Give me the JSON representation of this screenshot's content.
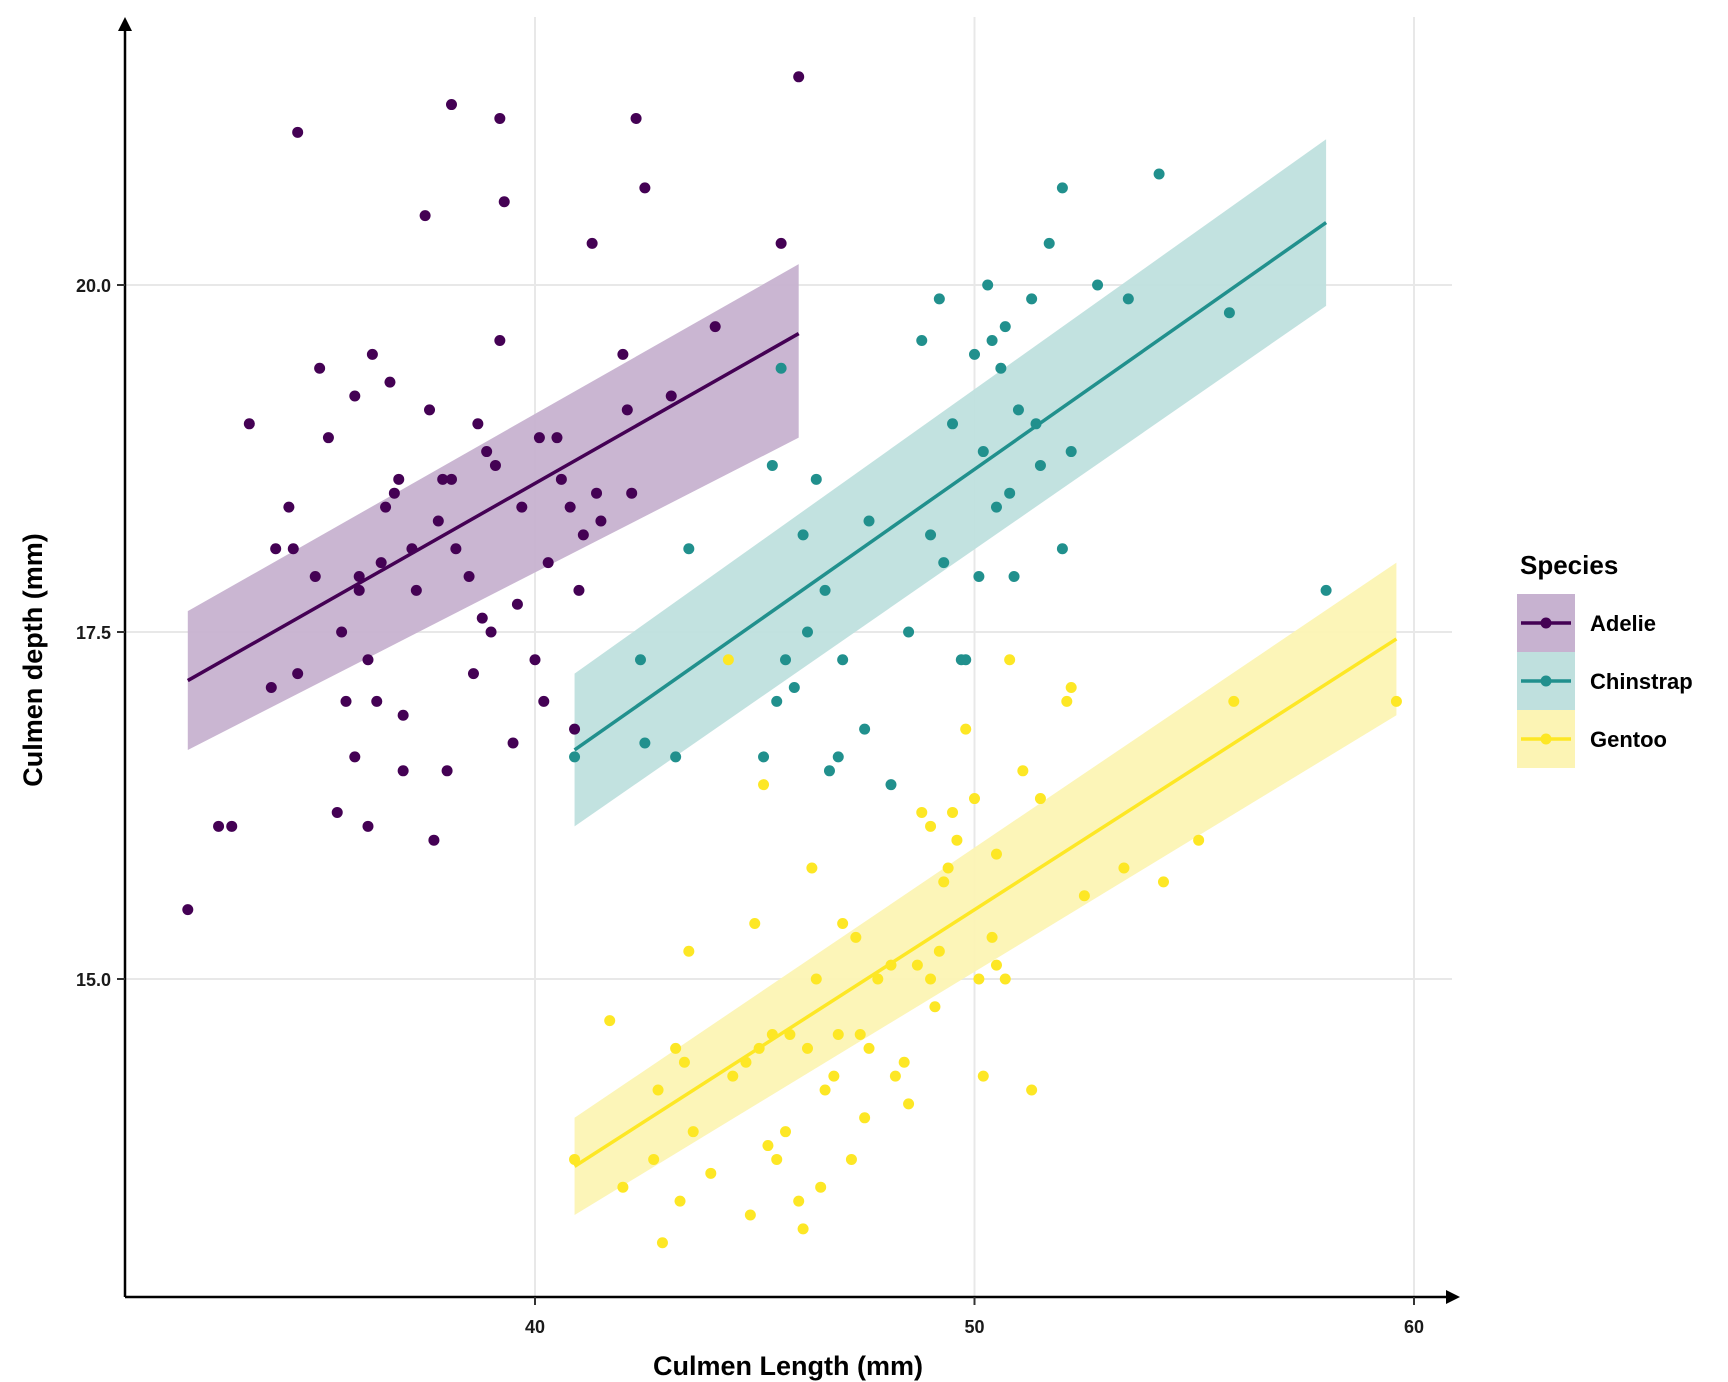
{
  "chart_data": {
    "type": "scatter",
    "title": "",
    "xlabel": "Culmen Length (mm)",
    "ylabel": "Culmen depth (mm)",
    "xlim": [
      31.5,
      61
    ],
    "ylim": [
      12.7,
      21.9
    ],
    "x_ticks": [
      40,
      50,
      60
    ],
    "y_ticks": [
      15.0,
      17.5,
      20.0
    ],
    "x_tick_labels": [
      "40",
      "50",
      "60"
    ],
    "y_tick_labels": [
      "15.0",
      "17.5",
      "20.0"
    ],
    "grid": true,
    "legend": {
      "title": "Species",
      "position": "right"
    },
    "series": [
      {
        "name": "Adelie",
        "color": "#440154",
        "fill": "#c7b2d0",
        "fit": {
          "x": [
            32.1,
            46.0
          ],
          "y": [
            17.15,
            19.65
          ],
          "band_lo": [
            16.65,
            18.9
          ],
          "band_hi": [
            17.65,
            20.15
          ]
        },
        "points": [
          [
            32.1,
            15.5
          ],
          [
            33.1,
            16.1
          ],
          [
            33.5,
            19.0
          ],
          [
            34.0,
            17.1
          ],
          [
            34.1,
            18.1
          ],
          [
            34.4,
            18.4
          ],
          [
            34.5,
            18.1
          ],
          [
            34.6,
            21.1
          ],
          [
            34.6,
            17.2
          ],
          [
            35.0,
            17.9
          ],
          [
            35.1,
            19.4
          ],
          [
            35.3,
            18.9
          ],
          [
            35.5,
            16.2
          ],
          [
            35.6,
            17.5
          ],
          [
            35.7,
            17.0
          ],
          [
            35.9,
            16.6
          ],
          [
            35.9,
            19.2
          ],
          [
            36.0,
            17.8
          ],
          [
            36.0,
            17.9
          ],
          [
            36.2,
            17.3
          ],
          [
            36.3,
            19.5
          ],
          [
            36.4,
            17.0
          ],
          [
            36.5,
            18.0
          ],
          [
            36.6,
            18.4
          ],
          [
            36.7,
            19.3
          ],
          [
            36.8,
            18.5
          ],
          [
            36.9,
            18.6
          ],
          [
            37.0,
            16.9
          ],
          [
            37.2,
            18.1
          ],
          [
            37.3,
            17.8
          ],
          [
            37.6,
            19.1
          ],
          [
            37.7,
            16.0
          ],
          [
            37.8,
            18.3
          ],
          [
            37.9,
            18.6
          ],
          [
            38.1,
            18.6
          ],
          [
            38.2,
            18.1
          ],
          [
            38.5,
            17.9
          ],
          [
            38.6,
            17.2
          ],
          [
            38.7,
            19.0
          ],
          [
            38.8,
            17.6
          ],
          [
            38.9,
            18.8
          ],
          [
            39.0,
            17.5
          ],
          [
            39.1,
            18.7
          ],
          [
            39.2,
            19.6
          ],
          [
            39.3,
            20.6
          ],
          [
            39.5,
            16.7
          ],
          [
            39.6,
            17.7
          ],
          [
            39.7,
            18.4
          ],
          [
            40.1,
            18.9
          ],
          [
            40.2,
            17.0
          ],
          [
            40.3,
            18.0
          ],
          [
            40.5,
            18.9
          ],
          [
            40.6,
            18.6
          ],
          [
            40.8,
            18.4
          ],
          [
            40.9,
            16.8
          ],
          [
            41.1,
            18.2
          ],
          [
            41.3,
            20.3
          ],
          [
            41.4,
            18.5
          ],
          [
            41.5,
            18.3
          ],
          [
            42.0,
            19.5
          ],
          [
            42.1,
            19.1
          ],
          [
            42.2,
            18.5
          ],
          [
            42.3,
            21.2
          ],
          [
            42.5,
            20.7
          ],
          [
            43.1,
            19.2
          ],
          [
            44.1,
            19.7
          ],
          [
            45.6,
            20.3
          ],
          [
            46.0,
            21.5
          ],
          [
            32.8,
            16.1
          ],
          [
            37.0,
            16.5
          ],
          [
            38.0,
            16.5
          ],
          [
            36.2,
            16.1
          ],
          [
            40.0,
            17.3
          ],
          [
            41.0,
            17.8
          ],
          [
            37.5,
            20.5
          ],
          [
            38.1,
            21.3
          ],
          [
            39.2,
            21.2
          ]
        ]
      },
      {
        "name": "Chinstrap",
        "color": "#21908d",
        "fill": "#bfe0de",
        "fit": {
          "x": [
            40.9,
            58.0
          ],
          "y": [
            16.65,
            20.45
          ],
          "band_lo": [
            16.1,
            19.85
          ],
          "band_hi": [
            17.2,
            21.05
          ]
        },
        "points": [
          [
            40.9,
            16.6
          ],
          [
            42.4,
            17.3
          ],
          [
            42.5,
            16.7
          ],
          [
            43.2,
            16.6
          ],
          [
            43.5,
            18.1
          ],
          [
            45.2,
            16.6
          ],
          [
            45.4,
            18.7
          ],
          [
            45.5,
            17.0
          ],
          [
            45.6,
            19.4
          ],
          [
            45.7,
            17.3
          ],
          [
            45.9,
            17.1
          ],
          [
            46.1,
            18.2
          ],
          [
            46.2,
            17.5
          ],
          [
            46.4,
            18.6
          ],
          [
            46.6,
            17.8
          ],
          [
            46.7,
            16.5
          ],
          [
            46.9,
            16.6
          ],
          [
            47.0,
            17.3
          ],
          [
            47.5,
            16.8
          ],
          [
            47.6,
            18.3
          ],
          [
            48.1,
            16.4
          ],
          [
            48.5,
            17.5
          ],
          [
            48.8,
            19.6
          ],
          [
            49.0,
            18.2
          ],
          [
            49.2,
            19.9
          ],
          [
            49.3,
            18.0
          ],
          [
            49.5,
            19.0
          ],
          [
            49.7,
            17.3
          ],
          [
            49.8,
            17.3
          ],
          [
            50.0,
            19.5
          ],
          [
            50.1,
            17.9
          ],
          [
            50.2,
            18.8
          ],
          [
            50.3,
            20.0
          ],
          [
            50.4,
            19.6
          ],
          [
            50.5,
            18.4
          ],
          [
            50.6,
            19.4
          ],
          [
            50.7,
            19.7
          ],
          [
            50.8,
            18.5
          ],
          [
            50.9,
            17.9
          ],
          [
            51.0,
            19.1
          ],
          [
            51.3,
            19.9
          ],
          [
            51.4,
            19.0
          ],
          [
            51.5,
            18.7
          ],
          [
            51.7,
            20.3
          ],
          [
            52.0,
            18.1
          ],
          [
            52.0,
            20.7
          ],
          [
            52.2,
            18.8
          ],
          [
            52.8,
            20.0
          ],
          [
            53.5,
            19.9
          ],
          [
            54.2,
            20.8
          ],
          [
            55.8,
            19.8
          ],
          [
            58.0,
            17.8
          ]
        ]
      },
      {
        "name": "Gentoo",
        "color": "#fde725",
        "fill": "#fcf4b4",
        "fit": {
          "x": [
            40.9,
            59.6
          ],
          "y": [
            13.65,
            17.45
          ],
          "band_lo": [
            13.3,
            16.9
          ],
          "band_hi": [
            14.0,
            18.0
          ]
        },
        "points": [
          [
            40.9,
            13.7
          ],
          [
            41.7,
            14.7
          ],
          [
            42.0,
            13.5
          ],
          [
            42.7,
            13.7
          ],
          [
            42.8,
            14.2
          ],
          [
            42.9,
            13.1
          ],
          [
            43.2,
            14.5
          ],
          [
            43.3,
            13.4
          ],
          [
            43.4,
            14.4
          ],
          [
            43.5,
            15.2
          ],
          [
            43.6,
            13.9
          ],
          [
            44.0,
            13.6
          ],
          [
            44.4,
            17.3
          ],
          [
            44.5,
            14.3
          ],
          [
            44.9,
            13.3
          ],
          [
            45.1,
            14.5
          ],
          [
            45.2,
            16.4
          ],
          [
            45.3,
            13.8
          ],
          [
            45.4,
            14.6
          ],
          [
            45.5,
            13.7
          ],
          [
            45.7,
            13.9
          ],
          [
            45.8,
            14.6
          ],
          [
            46.1,
            13.2
          ],
          [
            46.2,
            14.5
          ],
          [
            46.3,
            15.8
          ],
          [
            46.4,
            15.0
          ],
          [
            46.5,
            13.5
          ],
          [
            46.6,
            14.2
          ],
          [
            46.8,
            14.3
          ],
          [
            46.9,
            14.6
          ],
          [
            47.2,
            13.7
          ],
          [
            47.3,
            15.3
          ],
          [
            47.4,
            14.6
          ],
          [
            47.5,
            14.0
          ],
          [
            47.6,
            14.5
          ],
          [
            47.8,
            15.0
          ],
          [
            48.1,
            15.1
          ],
          [
            48.2,
            14.3
          ],
          [
            48.4,
            14.4
          ],
          [
            48.5,
            14.1
          ],
          [
            48.7,
            15.1
          ],
          [
            48.8,
            16.2
          ],
          [
            49.0,
            16.1
          ],
          [
            49.1,
            14.8
          ],
          [
            49.2,
            15.2
          ],
          [
            49.3,
            15.7
          ],
          [
            49.4,
            15.8
          ],
          [
            49.5,
            16.2
          ],
          [
            49.6,
            16.0
          ],
          [
            49.8,
            16.8
          ],
          [
            50.0,
            16.3
          ],
          [
            50.1,
            15.0
          ],
          [
            50.2,
            14.3
          ],
          [
            50.4,
            15.3
          ],
          [
            50.5,
            15.9
          ],
          [
            50.7,
            15.0
          ],
          [
            50.8,
            17.3
          ],
          [
            51.1,
            16.5
          ],
          [
            51.3,
            14.2
          ],
          [
            51.5,
            16.3
          ],
          [
            52.1,
            17.0
          ],
          [
            52.2,
            17.1
          ],
          [
            52.5,
            15.6
          ],
          [
            53.4,
            15.8
          ],
          [
            54.3,
            15.7
          ],
          [
            55.1,
            16.0
          ],
          [
            55.9,
            17.0
          ],
          [
            59.6,
            17.0
          ],
          [
            45.0,
            15.4
          ],
          [
            44.8,
            14.4
          ],
          [
            46.0,
            13.4
          ],
          [
            47.0,
            15.4
          ],
          [
            49.0,
            15.0
          ],
          [
            50.5,
            15.1
          ]
        ]
      }
    ]
  }
}
